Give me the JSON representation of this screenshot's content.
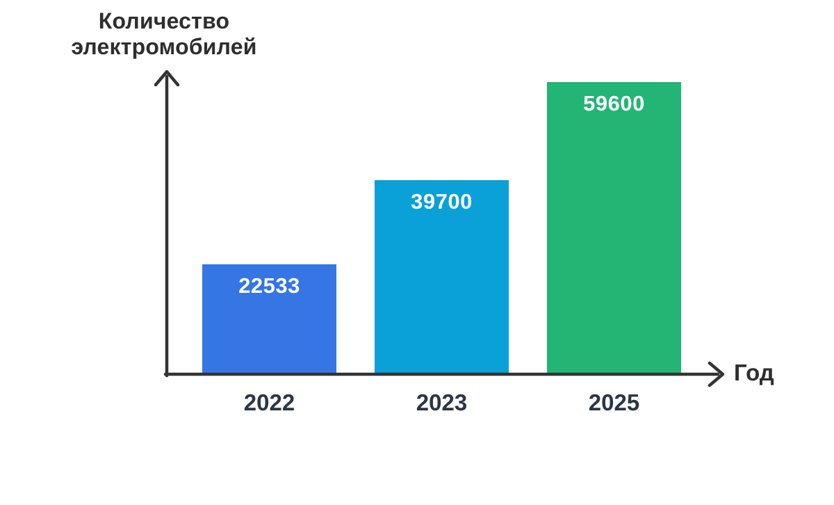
{
  "page": {
    "background": "#ffffff"
  },
  "chart_data": {
    "type": "bar",
    "title": "Количество\nэлектромобилей",
    "ylabel": "Количество электромобилей",
    "xlabel": "Год",
    "categories": [
      "2022",
      "2023",
      "2025"
    ],
    "values": [
      22533,
      39700,
      59600
    ],
    "series": [
      {
        "name": "Количество электромобилей",
        "values": [
          22533,
          39700,
          59600
        ]
      }
    ],
    "bar_colors": [
      "#3575E4",
      "#0AA0D8",
      "#22B573"
    ],
    "value_label_color": "#ffffff",
    "category_label_color": "#2A3647",
    "axis_color": "#333333",
    "title_color": "#2e2e2e",
    "ylim": [
      0,
      61000
    ],
    "grid": false,
    "legend_position": "none",
    "value_labels_position": "inside-top"
  }
}
